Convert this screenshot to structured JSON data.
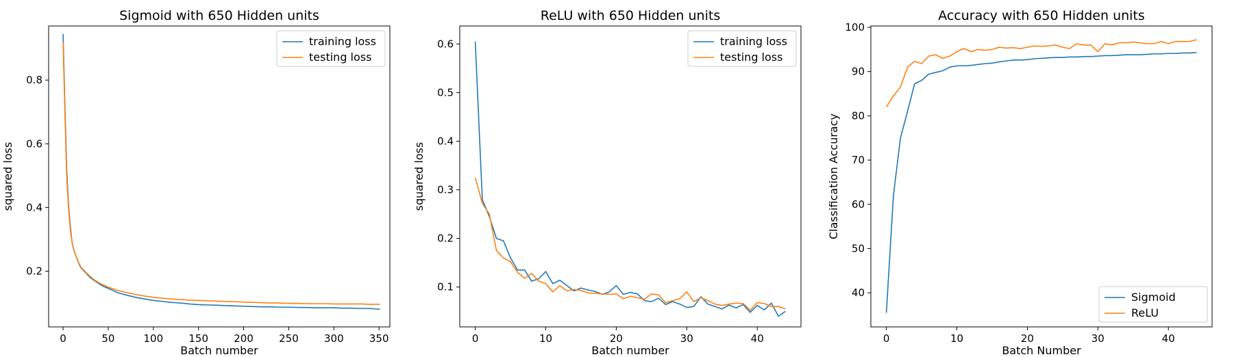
{
  "colors": {
    "series_a": "#1f77b4",
    "series_b": "#ff7f0e"
  },
  "chart_data": [
    {
      "type": "line",
      "title": "Sigmoid with 650 Hidden units",
      "xlabel": "Batch number",
      "ylabel": "squared loss",
      "xlim": [
        -16,
        362
      ],
      "ylim": [
        0.025,
        0.97
      ],
      "xticks": [
        0,
        50,
        100,
        150,
        200,
        250,
        300,
        350
      ],
      "yticks": [
        0.2,
        0.4,
        0.6,
        0.8
      ],
      "ytick_labels": [
        "0.2",
        "0.4",
        "0.6",
        "0.8"
      ],
      "legend": "top-right",
      "series": [
        {
          "name": "training loss",
          "x": [
            0,
            2,
            4,
            6,
            8,
            10,
            12,
            14,
            16,
            18,
            20,
            25,
            30,
            35,
            40,
            45,
            50,
            55,
            60,
            70,
            80,
            90,
            100,
            110,
            120,
            130,
            140,
            150,
            160,
            170,
            180,
            190,
            200,
            210,
            220,
            230,
            240,
            250,
            260,
            270,
            280,
            290,
            300,
            310,
            320,
            330,
            340,
            351
          ],
          "y": [
            0.945,
            0.72,
            0.52,
            0.41,
            0.34,
            0.29,
            0.265,
            0.25,
            0.235,
            0.22,
            0.21,
            0.195,
            0.18,
            0.17,
            0.16,
            0.152,
            0.146,
            0.14,
            0.133,
            0.125,
            0.118,
            0.113,
            0.108,
            0.105,
            0.102,
            0.1,
            0.097,
            0.095,
            0.094,
            0.093,
            0.092,
            0.091,
            0.09,
            0.089,
            0.088,
            0.088,
            0.087,
            0.087,
            0.086,
            0.086,
            0.085,
            0.085,
            0.085,
            0.084,
            0.084,
            0.083,
            0.083,
            0.08
          ]
        },
        {
          "name": "testing loss",
          "x": [
            0,
            2,
            4,
            6,
            8,
            10,
            12,
            14,
            16,
            18,
            20,
            25,
            30,
            35,
            40,
            45,
            50,
            55,
            60,
            70,
            80,
            90,
            100,
            110,
            120,
            130,
            140,
            150,
            160,
            170,
            180,
            190,
            200,
            210,
            220,
            230,
            240,
            250,
            260,
            270,
            280,
            290,
            300,
            310,
            320,
            330,
            340,
            351
          ],
          "y": [
            0.92,
            0.7,
            0.5,
            0.4,
            0.33,
            0.29,
            0.265,
            0.25,
            0.235,
            0.222,
            0.212,
            0.197,
            0.183,
            0.172,
            0.163,
            0.156,
            0.15,
            0.145,
            0.14,
            0.133,
            0.127,
            0.122,
            0.118,
            0.115,
            0.113,
            0.111,
            0.109,
            0.108,
            0.107,
            0.106,
            0.105,
            0.104,
            0.103,
            0.102,
            0.101,
            0.1,
            0.1,
            0.099,
            0.099,
            0.098,
            0.098,
            0.098,
            0.097,
            0.097,
            0.097,
            0.097,
            0.096,
            0.096
          ]
        }
      ]
    },
    {
      "type": "line",
      "title": "ReLU with 650 Hidden units",
      "xlabel": "Batch number",
      "ylabel": "squared loss",
      "xlim": [
        -2.2,
        46.2
      ],
      "ylim": [
        0.018,
        0.637
      ],
      "xticks": [
        0,
        10,
        20,
        30,
        40
      ],
      "yticks": [
        0.1,
        0.2,
        0.3,
        0.4,
        0.5,
        0.6
      ],
      "ytick_labels": [
        "0.1",
        "0.2",
        "0.3",
        "0.4",
        "0.5",
        "0.6"
      ],
      "legend": "top-right",
      "series": [
        {
          "name": "training loss",
          "x": [
            0,
            1,
            2,
            3,
            4,
            5,
            6,
            7,
            8,
            9,
            10,
            11,
            12,
            13,
            14,
            15,
            16,
            17,
            18,
            19,
            20,
            21,
            22,
            23,
            24,
            25,
            26,
            27,
            28,
            29,
            30,
            31,
            32,
            33,
            34,
            35,
            36,
            37,
            38,
            39,
            40,
            41,
            42,
            43,
            44
          ],
          "y": [
            0.605,
            0.28,
            0.245,
            0.2,
            0.195,
            0.16,
            0.135,
            0.135,
            0.112,
            0.117,
            0.132,
            0.107,
            0.114,
            0.103,
            0.092,
            0.098,
            0.094,
            0.091,
            0.085,
            0.09,
            0.103,
            0.085,
            0.089,
            0.086,
            0.072,
            0.07,
            0.077,
            0.064,
            0.07,
            0.065,
            0.058,
            0.06,
            0.08,
            0.065,
            0.06,
            0.055,
            0.063,
            0.057,
            0.064,
            0.048,
            0.062,
            0.053,
            0.067,
            0.04,
            0.05
          ]
        },
        {
          "name": "testing loss",
          "x": [
            0,
            1,
            2,
            3,
            4,
            5,
            6,
            7,
            8,
            9,
            10,
            11,
            12,
            13,
            14,
            15,
            16,
            17,
            18,
            19,
            20,
            21,
            22,
            23,
            24,
            25,
            26,
            27,
            28,
            29,
            30,
            31,
            32,
            33,
            34,
            35,
            36,
            37,
            38,
            39,
            40,
            41,
            42,
            43,
            44
          ],
          "y": [
            0.325,
            0.272,
            0.25,
            0.175,
            0.16,
            0.152,
            0.13,
            0.118,
            0.128,
            0.112,
            0.107,
            0.09,
            0.103,
            0.092,
            0.095,
            0.093,
            0.088,
            0.087,
            0.086,
            0.085,
            0.086,
            0.076,
            0.081,
            0.078,
            0.075,
            0.086,
            0.084,
            0.068,
            0.072,
            0.076,
            0.09,
            0.07,
            0.078,
            0.072,
            0.065,
            0.062,
            0.065,
            0.067,
            0.066,
            0.052,
            0.068,
            0.066,
            0.06,
            0.06,
            0.055
          ]
        }
      ]
    },
    {
      "type": "line",
      "title": "Accuracy with 650 Hidden units",
      "xlabel": "Batch Number",
      "ylabel": "Classification Accuracy",
      "xlim": [
        -2.2,
        46.2
      ],
      "ylim": [
        32.3,
        100.3
      ],
      "xticks": [
        0,
        10,
        20,
        30,
        40
      ],
      "yticks": [
        40,
        50,
        60,
        70,
        80,
        90,
        100
      ],
      "ytick_labels": [
        "40",
        "50",
        "60",
        "70",
        "80",
        "90",
        "100"
      ],
      "legend": "bottom-right",
      "series": [
        {
          "name": "Sigmoid",
          "x": [
            0,
            1,
            2,
            3,
            4,
            5,
            6,
            7,
            8,
            9,
            10,
            11,
            12,
            13,
            14,
            15,
            16,
            17,
            18,
            19,
            20,
            21,
            22,
            23,
            24,
            25,
            26,
            27,
            28,
            29,
            30,
            31,
            32,
            33,
            34,
            35,
            36,
            37,
            38,
            39,
            40,
            41,
            42,
            43,
            44
          ],
          "y": [
            35.5,
            62.0,
            75.0,
            81.0,
            87.2,
            88.0,
            89.4,
            89.8,
            90.2,
            91.0,
            91.3,
            91.3,
            91.4,
            91.6,
            91.8,
            91.9,
            92.2,
            92.4,
            92.6,
            92.6,
            92.7,
            92.9,
            93.0,
            93.1,
            93.2,
            93.2,
            93.3,
            93.3,
            93.4,
            93.4,
            93.5,
            93.6,
            93.6,
            93.7,
            93.8,
            93.8,
            93.8,
            93.9,
            94.0,
            94.0,
            94.1,
            94.1,
            94.2,
            94.2,
            94.3
          ]
        },
        {
          "name": "ReLU",
          "x": [
            0,
            1,
            2,
            3,
            4,
            5,
            6,
            7,
            8,
            9,
            10,
            11,
            12,
            13,
            14,
            15,
            16,
            17,
            18,
            19,
            20,
            21,
            22,
            23,
            24,
            25,
            26,
            27,
            28,
            29,
            30,
            31,
            32,
            33,
            34,
            35,
            36,
            37,
            38,
            39,
            40,
            41,
            42,
            43,
            44
          ],
          "y": [
            82.0,
            84.5,
            86.5,
            91.0,
            92.3,
            91.8,
            93.5,
            93.8,
            93.0,
            93.5,
            94.5,
            95.2,
            94.5,
            95.0,
            94.8,
            95.0,
            95.5,
            95.3,
            95.4,
            95.2,
            95.5,
            95.8,
            95.7,
            95.8,
            96.0,
            95.5,
            95.2,
            96.3,
            96.0,
            96.0,
            94.5,
            96.3,
            96.0,
            96.5,
            96.5,
            96.7,
            96.5,
            96.3,
            96.3,
            96.8,
            96.3,
            96.8,
            96.8,
            96.8,
            97.2
          ]
        }
      ]
    }
  ]
}
